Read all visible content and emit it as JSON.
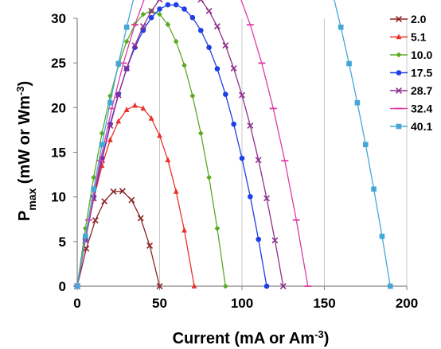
{
  "chart_data": {
    "type": "line",
    "xlabel_main": "Current (mA or Am",
    "xlabel_sup": "-3",
    "xlabel_end": ")",
    "ylabel_main": "P",
    "ylabel_sub": "max",
    "ylabel_mid": " (mW or Wm",
    "ylabel_sup": "-3",
    "ylabel_end": ")",
    "xlim": [
      0,
      200
    ],
    "ylim": [
      0,
      30
    ],
    "xticks": [
      0,
      50,
      100,
      150,
      200
    ],
    "yticks": [
      0,
      5,
      10,
      15,
      20,
      25,
      30
    ],
    "grid": "vertical",
    "legend_position": "right",
    "series": [
      {
        "name": "2.0",
        "color": "#8b2323",
        "marker": "x",
        "vmax": 0.86,
        "x": [
          0,
          5.5,
          11,
          16.5,
          22,
          27.5,
          33,
          38.5,
          44,
          50
        ]
      },
      {
        "name": "5.1",
        "color": "#e8322a",
        "marker": "triangle",
        "vmax": 1.14,
        "x": [
          0,
          5,
          10,
          15,
          20,
          25,
          30,
          35,
          40,
          45,
          50,
          55,
          60,
          65,
          71
        ]
      },
      {
        "name": "10.0",
        "color": "#5aaa23",
        "marker": "diamond",
        "vmax": 1.37,
        "x": [
          0,
          5,
          10,
          15,
          20,
          25,
          30,
          35,
          40,
          45,
          50,
          55,
          60,
          65,
          70,
          75,
          80,
          85,
          90
        ]
      },
      {
        "name": "17.5",
        "color": "#1e3ee6",
        "marker": "circle",
        "vmax": 1.098,
        "x": [
          0,
          5,
          10,
          15,
          20,
          25,
          30,
          35,
          40,
          45,
          50,
          55,
          60,
          65,
          70,
          75,
          80,
          85,
          90,
          95,
          100,
          105,
          110,
          115
        ]
      },
      {
        "name": "28.7",
        "color": "#8e2f8e",
        "marker": "x",
        "vmax": 1.07,
        "x": [
          0,
          5,
          10,
          15,
          20,
          25,
          30,
          35,
          40,
          45,
          50,
          55,
          60,
          65,
          70,
          75,
          80,
          85,
          90,
          95,
          100,
          105,
          110,
          115,
          120,
          125
        ]
      },
      {
        "name": "32.4",
        "color": "#e03aa6",
        "marker": "bar",
        "vmax": 1.115,
        "x": [
          0,
          7,
          14,
          21,
          28,
          35,
          42,
          49,
          56,
          63,
          70,
          77,
          84,
          91,
          98,
          105,
          112,
          119,
          126,
          133,
          140
        ]
      },
      {
        "name": "40.1",
        "color": "#45a7d6",
        "marker": "square",
        "vmax": 1.148,
        "x": [
          0,
          5,
          10,
          15,
          20,
          25,
          30,
          35,
          40,
          45,
          50,
          55,
          60,
          65,
          70,
          75,
          80,
          85,
          90,
          95,
          100,
          105,
          110,
          115,
          120,
          125,
          130,
          135,
          140,
          145,
          150,
          155,
          160,
          165,
          170,
          175,
          180,
          185,
          190
        ]
      }
    ],
    "note_y": "y = x * vmax * (1 - x / xmax) where xmax is the last x of each series"
  }
}
